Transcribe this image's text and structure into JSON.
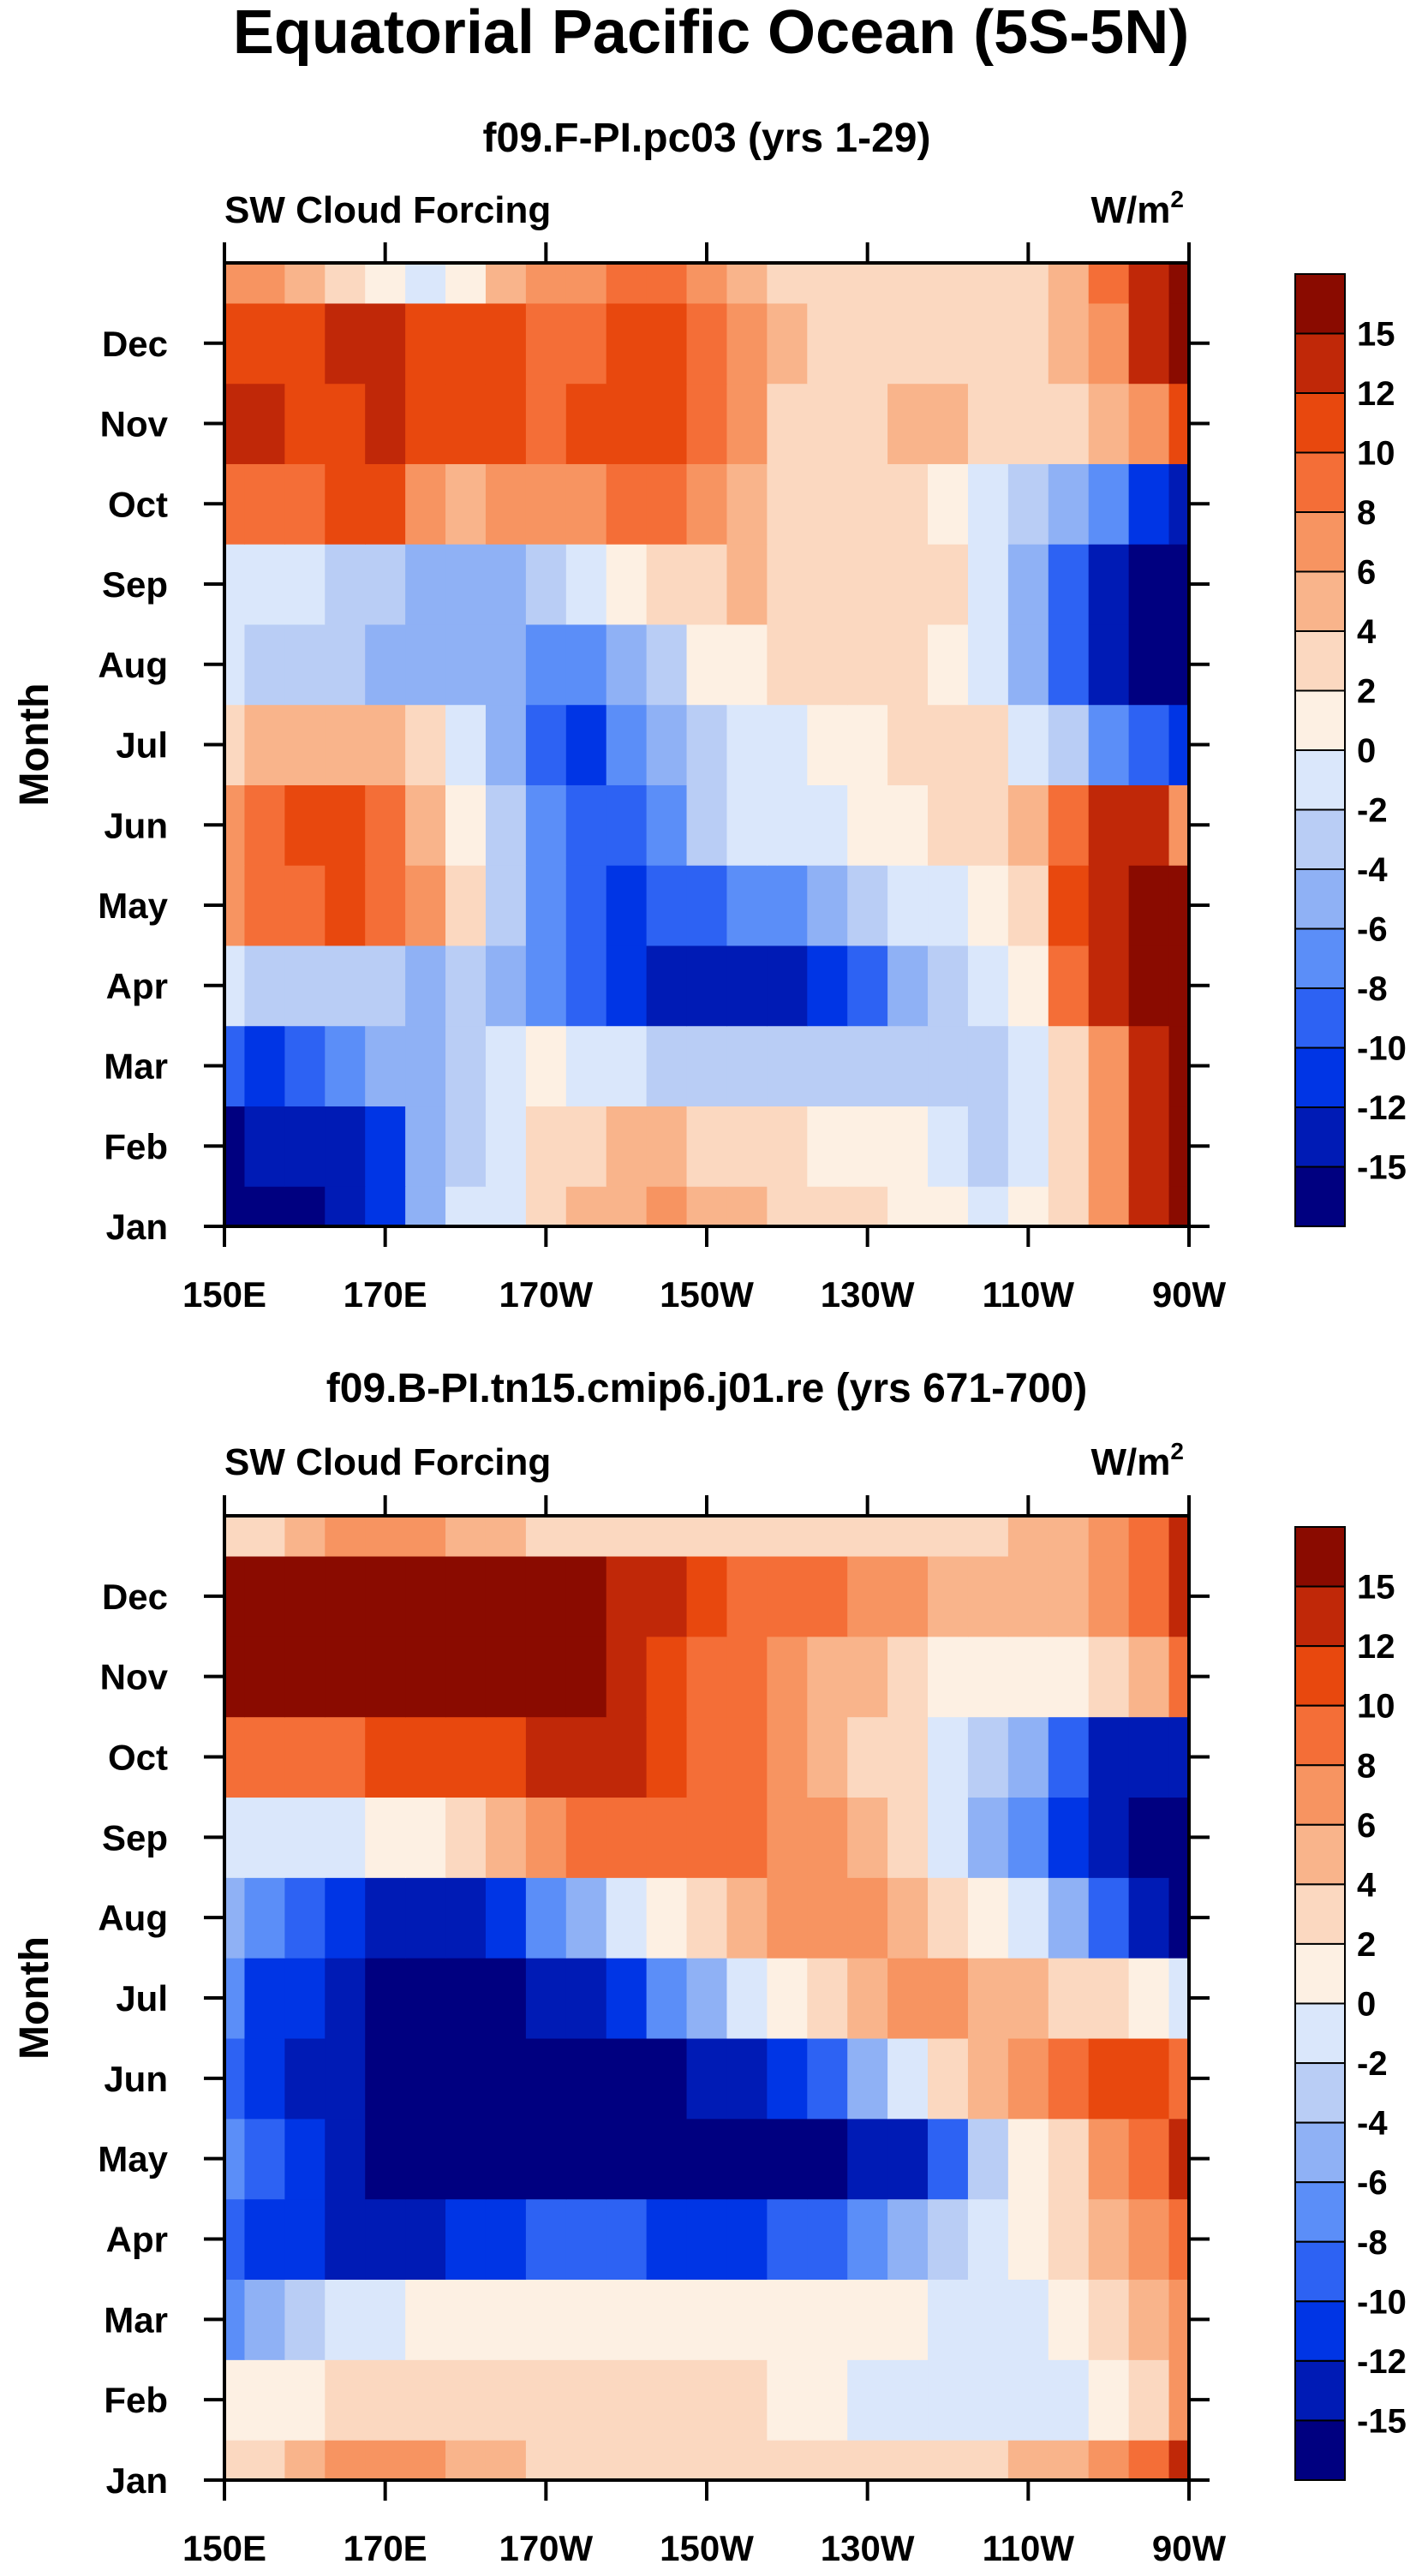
{
  "figure_title": "Equatorial Pacific Ocean (5S-5N)",
  "colors": {
    "levels": [
      "#000080",
      "#001bb5",
      "#0035e5",
      "#2d62f3",
      "#5b8ef8",
      "#8fb1f5",
      "#b9cdf5",
      "#dae7fb",
      "#fdf0e3",
      "#fbd8c0",
      "#f9b48b",
      "#f79461",
      "#f46e37",
      "#e8480e",
      "#c02808",
      "#8a0b00"
    ]
  },
  "chart_data": [
    {
      "type": "heatmap",
      "subtitle": "f09.F-PI.pc03 (yrs 1-29)",
      "variable": "SW Cloud Forcing",
      "units_prefix": "W/m",
      "units_exp": "2",
      "ylabel": "Month",
      "xlabel": "",
      "x_ticks": [
        "150E",
        "170E",
        "170W",
        "150W",
        "130W",
        "110W",
        "90W"
      ],
      "y_ticks": [
        "Jan",
        "Feb",
        "Mar",
        "Apr",
        "May",
        "Jun",
        "Jul",
        "Aug",
        "Sep",
        "Oct",
        "Nov",
        "Dec"
      ],
      "colorbar_levels": [
        "15",
        "12",
        "10",
        "8",
        "6",
        "4",
        "2",
        "0",
        "-2",
        "-4",
        "-6",
        "-8",
        "-10",
        "-12",
        "-15"
      ],
      "x_lon": [
        150,
        155,
        160,
        165,
        170,
        175,
        180,
        185,
        190,
        195,
        200,
        205,
        210,
        215,
        220,
        225,
        230,
        235,
        240,
        245,
        250,
        255,
        260,
        265,
        270
      ],
      "months": [
        1,
        2,
        3,
        4,
        5,
        6,
        7,
        8,
        9,
        10,
        11,
        12,
        13
      ],
      "values": [
        [
          -16,
          -16,
          -16,
          -15,
          -11,
          -6,
          -2,
          -1,
          2,
          4,
          5,
          6,
          5,
          4,
          3,
          2,
          2,
          1,
          0,
          -1,
          0,
          2,
          7,
          13,
          16
        ],
        [
          -16,
          -15,
          -15,
          -14,
          -11,
          -6,
          -3,
          -1,
          2,
          3,
          4,
          4,
          3,
          2,
          2,
          1,
          1,
          0,
          -1,
          -3,
          -1,
          2,
          6,
          12,
          16
        ],
        [
          -10,
          -12,
          -10,
          -8,
          -6,
          -5,
          -4,
          -2,
          0,
          -2,
          -2,
          -3,
          -3,
          -3,
          -3,
          -3,
          -3,
          -4,
          -4,
          -3,
          -1,
          2,
          6,
          13,
          17
        ],
        [
          -2,
          -3,
          -3,
          -3,
          -4,
          -5,
          -4,
          -6,
          -8,
          -10,
          -12,
          -13,
          -15,
          -15,
          -14,
          -11,
          -9,
          -6,
          -3,
          -1,
          1,
          8,
          13,
          16,
          16
        ],
        [
          6,
          8,
          9,
          10,
          9,
          6,
          2,
          -4,
          -8,
          -10,
          -11,
          -10,
          -9,
          -8,
          -7,
          -6,
          -4,
          -2,
          -1,
          1,
          3,
          10,
          13,
          16,
          16
        ],
        [
          6,
          8,
          10,
          10,
          8,
          5,
          1,
          -3,
          -7,
          -10,
          -10,
          -7,
          -4,
          -2,
          -1,
          -1,
          0,
          1,
          2,
          3,
          4,
          9,
          12,
          12,
          6
        ],
        [
          3,
          4,
          5,
          5,
          4,
          2,
          -1,
          -5,
          -9,
          -12,
          -8,
          -5,
          -3,
          -1,
          -1,
          0,
          1,
          2,
          3,
          2,
          -1,
          -4,
          -8,
          -10,
          -12
        ],
        [
          -2,
          -3,
          -4,
          -4,
          -5,
          -6,
          -6,
          -6,
          -8,
          -7,
          -5,
          -3,
          0,
          1,
          2,
          3,
          3,
          2,
          1,
          -2,
          -6,
          -10,
          -14,
          -16,
          -16
        ],
        [
          -1,
          -2,
          -2,
          -3,
          -4,
          -6,
          -6,
          -5,
          -4,
          -2,
          0,
          2,
          3,
          4,
          3,
          3,
          3,
          3,
          2,
          -2,
          -6,
          -10,
          -14,
          -16,
          -16
        ],
        [
          8,
          9,
          9,
          10,
          10,
          7,
          5,
          6,
          7,
          7,
          8,
          8,
          6,
          5,
          3,
          2,
          2,
          2,
          1,
          -1,
          -3,
          -5,
          -8,
          -12,
          -14
        ],
        [
          14,
          13,
          11,
          11,
          12,
          10,
          11,
          11,
          9,
          10,
          11,
          10,
          8,
          6,
          3,
          2,
          3,
          4,
          4,
          2,
          2,
          3,
          4,
          6,
          10
        ],
        [
          10,
          11,
          11,
          12,
          13,
          11,
          10,
          10,
          9,
          9,
          10,
          10,
          8,
          6,
          4,
          3,
          3,
          3,
          3,
          2,
          2,
          4,
          7,
          12,
          16
        ],
        [
          6,
          6,
          5,
          3,
          1,
          -1,
          1,
          4,
          6,
          7,
          8,
          8,
          6,
          4,
          3,
          2,
          2,
          2,
          2,
          2,
          2,
          5,
          8,
          12,
          16
        ]
      ]
    },
    {
      "type": "heatmap",
      "subtitle": "f09.B-PI.tn15.cmip6.j01.re (yrs 671-700)",
      "variable": "SW Cloud Forcing",
      "units_prefix": "W/m",
      "units_exp": "2",
      "ylabel": "Month",
      "xlabel": "",
      "x_ticks": [
        "150E",
        "170E",
        "170W",
        "150W",
        "130W",
        "110W",
        "90W"
      ],
      "y_ticks": [
        "Jan",
        "Feb",
        "Mar",
        "Apr",
        "May",
        "Jun",
        "Jul",
        "Aug",
        "Sep",
        "Oct",
        "Nov",
        "Dec"
      ],
      "colorbar_levels": [
        "15",
        "12",
        "10",
        "8",
        "6",
        "4",
        "2",
        "0",
        "-2",
        "-4",
        "-6",
        "-8",
        "-10",
        "-12",
        "-15"
      ],
      "x_lon": [
        150,
        155,
        160,
        165,
        170,
        175,
        180,
        185,
        190,
        195,
        200,
        205,
        210,
        215,
        220,
        225,
        230,
        235,
        240,
        245,
        250,
        255,
        260,
        265,
        270
      ],
      "months": [
        1,
        2,
        3,
        4,
        5,
        6,
        7,
        8,
        9,
        10,
        11,
        12,
        13
      ],
      "values": [
        [
          3,
          3,
          4,
          6,
          7,
          6,
          5,
          4,
          3,
          3,
          3,
          3,
          3,
          3,
          3,
          2,
          2,
          2,
          2,
          3,
          4,
          5,
          6,
          9,
          13
        ],
        [
          0,
          1,
          1,
          2,
          3,
          3,
          3,
          3,
          2,
          2,
          2,
          2,
          2,
          2,
          1,
          0,
          -1,
          -1,
          -1,
          -1,
          -1,
          -1,
          1,
          3,
          6
        ],
        [
          -7,
          -6,
          -4,
          -2,
          -1,
          0,
          0,
          1,
          1,
          1,
          1,
          1,
          1,
          1,
          1,
          0,
          0,
          0,
          -1,
          -2,
          -1,
          1,
          2,
          4,
          6
        ],
        [
          -10,
          -11,
          -12,
          -13,
          -13,
          -13,
          -12,
          -11,
          -10,
          -10,
          -10,
          -11,
          -11,
          -11,
          -10,
          -9,
          -8,
          -6,
          -4,
          -2,
          0,
          2,
          4,
          6,
          8
        ],
        [
          -8,
          -10,
          -12,
          -15,
          -16,
          -16,
          -16,
          -16,
          -16,
          -16,
          -16,
          -16,
          -16,
          -16,
          -16,
          -16,
          -15,
          -13,
          -9,
          -4,
          0,
          3,
          6,
          9,
          12
        ],
        [
          -10,
          -12,
          -13,
          -15,
          -16,
          -16,
          -16,
          -16,
          -16,
          -16,
          -16,
          -16,
          -15,
          -14,
          -12,
          -9,
          -5,
          -1,
          2,
          4,
          6,
          8,
          10,
          10,
          8
        ],
        [
          -8,
          -11,
          -12,
          -14,
          -16,
          -16,
          -16,
          -16,
          -15,
          -13,
          -11,
          -8,
          -5,
          -2,
          1,
          3,
          5,
          6,
          6,
          5,
          4,
          3,
          2,
          1,
          -2
        ],
        [
          -5,
          -8,
          -10,
          -12,
          -14,
          -14,
          -13,
          -11,
          -8,
          -5,
          -2,
          1,
          3,
          5,
          6,
          6,
          6,
          5,
          3,
          1,
          -2,
          -6,
          -10,
          -14,
          -16
        ],
        [
          -1,
          -2,
          -2,
          -1,
          0,
          1,
          3,
          5,
          7,
          8,
          8,
          8,
          8,
          8,
          7,
          6,
          4,
          2,
          -2,
          -5,
          -8,
          -12,
          -15,
          -16,
          -16
        ],
        [
          8,
          8,
          9,
          9,
          10,
          10,
          10,
          11,
          12,
          13,
          12,
          10,
          9,
          8,
          6,
          4,
          3,
          2,
          -1,
          -3,
          -6,
          -10,
          -13,
          -14,
          -14
        ],
        [
          16,
          16,
          16,
          16,
          16,
          16,
          16,
          16,
          16,
          15,
          12,
          10,
          9,
          8,
          6,
          5,
          5,
          3,
          1,
          0,
          0,
          1,
          3,
          5,
          8
        ],
        [
          16,
          16,
          16,
          16,
          16,
          16,
          16,
          16,
          16,
          16,
          14,
          12,
          10,
          9,
          8,
          8,
          7,
          6,
          5,
          4,
          4,
          5,
          7,
          9,
          12
        ],
        [
          3,
          3,
          4,
          6,
          7,
          6,
          5,
          4,
          3,
          3,
          3,
          3,
          3,
          3,
          3,
          2,
          2,
          2,
          2,
          3,
          4,
          5,
          6,
          9,
          13
        ]
      ]
    }
  ]
}
